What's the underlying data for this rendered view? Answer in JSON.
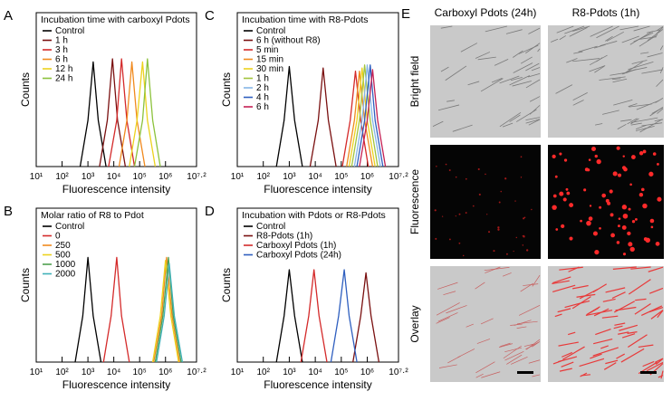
{
  "chart_data": [
    {
      "type": "line",
      "panel_label": "A",
      "legend_title": "Incubation time with carboxyl Pdots",
      "x_label": "Fluorescence intensity",
      "y_label": "Counts",
      "xscale": "log",
      "xlim": [
        10,
        15848932
      ],
      "ylim": [
        0,
        100
      ],
      "xticks": [
        {
          "value": 10,
          "label": "10¹"
        },
        {
          "value": 100,
          "label": "10²"
        },
        {
          "value": 1000,
          "label": "10³"
        },
        {
          "value": 10000,
          "label": "10⁴"
        },
        {
          "value": 100000,
          "label": "10⁵"
        },
        {
          "value": 1000000,
          "label": "10⁶"
        },
        {
          "value": 15848932,
          "label": "10⁷·²"
        }
      ],
      "series": [
        {
          "name": "Control",
          "color": "#000000",
          "x": [
            500,
            1000,
            1600,
            2500,
            5000
          ],
          "values": [
            0,
            30,
            68,
            30,
            0
          ]
        },
        {
          "name": "1 h",
          "color": "#7a1010",
          "x": [
            2800,
            5600,
            8900,
            14000,
            28000
          ],
          "values": [
            0,
            30,
            70,
            30,
            0
          ]
        },
        {
          "name": "3 h",
          "color": "#d42a2a",
          "x": [
            6300,
            13000,
            20000,
            32000,
            63000
          ],
          "values": [
            0,
            30,
            70,
            30,
            0
          ]
        },
        {
          "name": "6 h",
          "color": "#f08a1e",
          "x": [
            16000,
            32000,
            50000,
            79000,
            160000
          ],
          "values": [
            0,
            30,
            68,
            30,
            0
          ]
        },
        {
          "name": "12 h",
          "color": "#ecd21e",
          "x": [
            40000,
            79000,
            130000,
            200000,
            400000
          ],
          "values": [
            0,
            30,
            68,
            30,
            0
          ]
        },
        {
          "name": "24 h",
          "color": "#8cc23c",
          "x": [
            63000,
            130000,
            200000,
            320000,
            630000
          ],
          "values": [
            0,
            30,
            70,
            30,
            0
          ]
        }
      ]
    },
    {
      "type": "line",
      "panel_label": "B",
      "legend_title": "Molar ratio of R8 to Pdot",
      "x_label": "Fluorescence intensity",
      "y_label": "Counts",
      "xscale": "log",
      "xlim": [
        10,
        15848932
      ],
      "ylim": [
        0,
        100
      ],
      "xticks": [
        {
          "value": 10,
          "label": "10¹"
        },
        {
          "value": 100,
          "label": "10²"
        },
        {
          "value": 1000,
          "label": "10³"
        },
        {
          "value": 10000,
          "label": "10⁴"
        },
        {
          "value": 100000,
          "label": "10⁵"
        },
        {
          "value": 1000000,
          "label": "10⁶"
        },
        {
          "value": 15848932,
          "label": "10⁷·²"
        }
      ],
      "series": [
        {
          "name": "Control",
          "color": "#000000",
          "x": [
            320,
            630,
            1000,
            1600,
            3200
          ],
          "values": [
            0,
            30,
            68,
            30,
            0
          ]
        },
        {
          "name": "0",
          "color": "#d42a2a",
          "x": [
            4000,
            7900,
            13000,
            20000,
            40000
          ],
          "values": [
            0,
            30,
            68,
            30,
            0
          ]
        },
        {
          "name": "250",
          "color": "#f08a1e",
          "x": [
            350000,
            710000,
            1100000,
            1800000,
            3500000
          ],
          "values": [
            0,
            30,
            68,
            30,
            0
          ]
        },
        {
          "name": "500",
          "color": "#ecd21e",
          "x": [
            320000,
            630000,
            1000000,
            1600000,
            3200000
          ],
          "values": [
            0,
            30,
            66,
            30,
            0
          ]
        },
        {
          "name": "1000",
          "color": "#4ea04e",
          "x": [
            400000,
            790000,
            1300000,
            2000000,
            4000000
          ],
          "values": [
            0,
            30,
            68,
            30,
            0
          ]
        },
        {
          "name": "2000",
          "color": "#3fb0b8",
          "x": [
            450000,
            890000,
            1400000,
            2200000,
            4500000
          ],
          "values": [
            0,
            30,
            64,
            30,
            0
          ]
        }
      ]
    },
    {
      "type": "line",
      "panel_label": "C",
      "legend_title": "Incubation time with R8-Pdots",
      "x_label": "Fluorescence intensity",
      "y_label": "Counts",
      "xscale": "log",
      "xlim": [
        10,
        15848932
      ],
      "ylim": [
        0,
        100
      ],
      "xticks": [
        {
          "value": 10,
          "label": "10¹"
        },
        {
          "value": 100,
          "label": "10²"
        },
        {
          "value": 1000,
          "label": "10³"
        },
        {
          "value": 10000,
          "label": "10⁴"
        },
        {
          "value": 100000,
          "label": "10⁵"
        },
        {
          "value": 1000000,
          "label": "10⁶"
        },
        {
          "value": 15848932,
          "label": "10⁷·²"
        }
      ],
      "series": [
        {
          "name": "Control",
          "color": "#000000",
          "x": [
            320,
            630,
            1000,
            1600,
            3200
          ],
          "values": [
            0,
            30,
            65,
            30,
            0
          ]
        },
        {
          "name": "6 h (without R8)",
          "color": "#7a1010",
          "x": [
            6300,
            13000,
            20000,
            32000,
            63000
          ],
          "values": [
            0,
            30,
            64,
            30,
            0
          ]
        },
        {
          "name": "5 min",
          "color": "#d42a2a",
          "x": [
            110000,
            220000,
            350000,
            560000,
            1100000
          ],
          "values": [
            0,
            30,
            62,
            30,
            0
          ]
        },
        {
          "name": "15 min",
          "color": "#f08a1e",
          "x": [
            160000,
            320000,
            500000,
            790000,
            1600000
          ],
          "values": [
            0,
            30,
            62,
            30,
            0
          ]
        },
        {
          "name": "30 min",
          "color": "#ecd21e",
          "x": [
            200000,
            400000,
            630000,
            1000000,
            2000000
          ],
          "values": [
            0,
            30,
            64,
            30,
            0
          ]
        },
        {
          "name": "1 h",
          "color": "#a2c43c",
          "x": [
            250000,
            500000,
            790000,
            1300000,
            2500000
          ],
          "values": [
            0,
            30,
            66,
            30,
            0
          ]
        },
        {
          "name": "2 h",
          "color": "#86b6e6",
          "x": [
            320000,
            630000,
            1000000,
            1600000,
            3200000
          ],
          "values": [
            0,
            30,
            66,
            30,
            0
          ]
        },
        {
          "name": "4 h",
          "color": "#2f5fbf",
          "x": [
            400000,
            790000,
            1300000,
            2000000,
            4000000
          ],
          "values": [
            0,
            30,
            66,
            30,
            0
          ]
        },
        {
          "name": "6 h",
          "color": "#c42054",
          "x": [
            500000,
            1000000,
            1600000,
            2500000,
            5000000
          ],
          "values": [
            0,
            30,
            63,
            30,
            0
          ]
        }
      ]
    },
    {
      "type": "line",
      "panel_label": "D",
      "legend_title": "Incubation with Pdots or R8-Pdots",
      "x_label": "Fluorescence intensity",
      "y_label": "Counts",
      "xscale": "log",
      "xlim": [
        10,
        15848932
      ],
      "ylim": [
        0,
        100
      ],
      "xticks": [
        {
          "value": 10,
          "label": "10¹"
        },
        {
          "value": 100,
          "label": "10²"
        },
        {
          "value": 1000,
          "label": "10³"
        },
        {
          "value": 10000,
          "label": "10⁴"
        },
        {
          "value": 100000,
          "label": "10⁵"
        },
        {
          "value": 1000000,
          "label": "10⁶"
        },
        {
          "value": 15848932,
          "label": "10⁷·²"
        }
      ],
      "series": [
        {
          "name": "Control",
          "color": "#000000",
          "x": [
            320,
            630,
            1000,
            1600,
            3200
          ],
          "values": [
            0,
            30,
            60,
            30,
            0
          ]
        },
        {
          "name": "R8-Pdots (1h)",
          "color": "#7a1010",
          "x": [
            280000,
            560000,
            890000,
            1400000,
            2800000
          ],
          "values": [
            0,
            30,
            58,
            30,
            0
          ]
        },
        {
          "name": "Carboxyl Pdots (1h)",
          "color": "#d42a2a",
          "x": [
            2800,
            5600,
            8900,
            14000,
            28000
          ],
          "values": [
            0,
            30,
            60,
            30,
            0
          ]
        },
        {
          "name": "Carboxyl Pdots (24h)",
          "color": "#2f5fbf",
          "x": [
            40000,
            79000,
            130000,
            200000,
            400000
          ],
          "values": [
            0,
            30,
            60,
            30,
            0
          ]
        }
      ]
    }
  ],
  "image_panel": {
    "panel_label": "E",
    "columns": [
      "Carboxyl Pdots (24h)",
      "R8-Pdots (1h)"
    ],
    "rows": [
      "Bright field",
      "Fluorescence",
      "Overlay"
    ]
  }
}
